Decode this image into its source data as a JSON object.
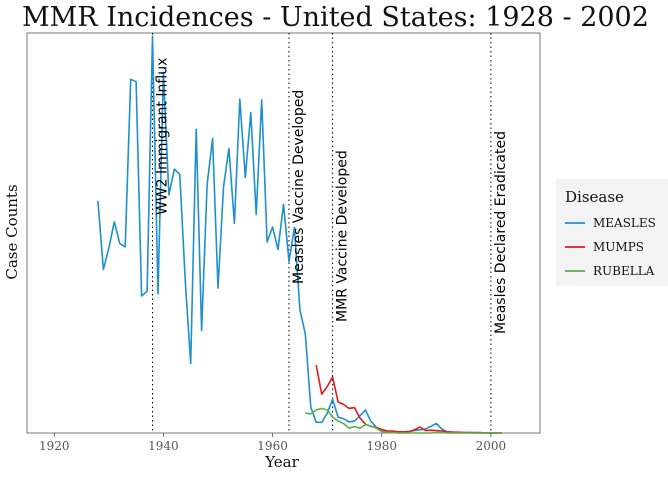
{
  "chart_data": {
    "type": "line",
    "title": "MMR Incidences - United States: 1928 - 2002",
    "xlabel": "Year",
    "ylabel": "Case Counts",
    "xlim": [
      1915,
      2009
    ],
    "ylim": [
      0,
      1000
    ],
    "x_ticks": [
      "1920",
      "1940",
      "1960",
      "1980",
      "2000"
    ],
    "grid": false,
    "legend": {
      "title": "Disease",
      "position": "right"
    },
    "annotations": [
      {
        "x": 1938,
        "label": "WW2 Immigrant Influx"
      },
      {
        "x": 1963,
        "label": "Measles Vaccine Developed"
      },
      {
        "x": 1971,
        "label": "MMR Vaccine Developed"
      },
      {
        "x": 2000,
        "label": "Measles Declared Eradicated"
      }
    ],
    "series": [
      {
        "name": "MEASLES",
        "color": "#1f8fd0",
        "x": [
          1928,
          1929,
          1930,
          1931,
          1932,
          1933,
          1934,
          1935,
          1936,
          1937,
          1938,
          1939,
          1940,
          1941,
          1942,
          1943,
          1944,
          1945,
          1946,
          1947,
          1948,
          1949,
          1950,
          1951,
          1952,
          1953,
          1954,
          1955,
          1956,
          1957,
          1958,
          1959,
          1960,
          1961,
          1962,
          1963,
          1964,
          1965,
          1966,
          1967,
          1968,
          1969,
          1970,
          1971,
          1972,
          1973,
          1974,
          1975,
          1976,
          1977,
          1978,
          1979,
          1980,
          1981,
          1982,
          1983,
          1984,
          1985,
          1986,
          1987,
          1988,
          1989,
          1990,
          1991,
          1992,
          1993,
          1994,
          1995,
          1996,
          1997,
          1998,
          1999,
          2000,
          2001,
          2002
        ],
        "values": [
          585,
          412,
          466,
          532,
          477,
          469,
          891,
          885,
          345,
          357,
          1000,
          351,
          908,
          600,
          665,
          651,
          381,
          175,
          765,
          258,
          625,
          742,
          365,
          619,
          717,
          528,
          841,
          644,
          807,
          550,
          839,
          481,
          519,
          462,
          576,
          432,
          518,
          310,
          250,
          65,
          27,
          27,
          50,
          85,
          40,
          36,
          28,
          30,
          43,
          58,
          30,
          14,
          5,
          3,
          2,
          2,
          3,
          4,
          6,
          8,
          10,
          17,
          24,
          10,
          3,
          2,
          1,
          1,
          1,
          0,
          0,
          0,
          0,
          0,
          0
        ]
      },
      {
        "name": "MUMPS",
        "color": "#e41a1c",
        "x": [
          1968,
          1969,
          1970,
          1971,
          1972,
          1973,
          1974,
          1975,
          1976,
          1977,
          1978,
          1979,
          1980,
          1981,
          1982,
          1983,
          1984,
          1985,
          1986,
          1987,
          1988,
          1989,
          1990,
          1991,
          1992,
          1993,
          1994,
          1995,
          1996,
          1997,
          1998,
          1999,
          2000,
          2001,
          2002
        ],
        "values": [
          171,
          98,
          117,
          141,
          78,
          72,
          62,
          64,
          38,
          22,
          17,
          14,
          9,
          5,
          5,
          3,
          3,
          3,
          8,
          15,
          6,
          7,
          6,
          5,
          3,
          2,
          2,
          1,
          1,
          1,
          1,
          0,
          0,
          0,
          0
        ]
      },
      {
        "name": "RUBELLA",
        "color": "#5cb04a",
        "x": [
          1966,
          1967,
          1968,
          1969,
          1970,
          1971,
          1972,
          1973,
          1974,
          1975,
          1976,
          1977,
          1978,
          1979,
          1980,
          1981,
          1982,
          1983,
          1984,
          1985,
          1986,
          1987,
          1988,
          1989,
          1990,
          1991,
          1992,
          1993,
          1994,
          1995,
          1996,
          1997,
          1998,
          1999,
          2000,
          2001,
          2002
        ],
        "values": [
          50,
          48,
          58,
          62,
          58,
          40,
          30,
          24,
          12,
          16,
          12,
          21,
          18,
          12,
          4,
          2,
          1,
          0,
          0,
          0,
          0,
          0,
          0,
          0,
          1,
          1,
          0,
          0,
          0,
          0,
          0,
          0,
          0,
          0,
          0,
          0,
          0
        ]
      }
    ]
  }
}
